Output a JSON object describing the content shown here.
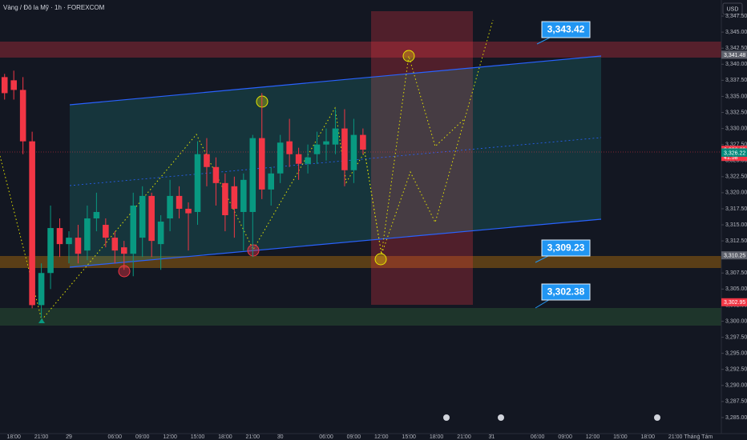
{
  "chart_data": {
    "type": "candlestick",
    "title": "Vàng / Đô la Mỹ · 1h · FOREXCOM",
    "currency": "USD",
    "up_color": "#089981",
    "down_color": "#f23645",
    "x": [
      -1,
      0,
      1,
      2,
      3,
      4,
      5,
      6,
      7,
      8,
      9,
      10,
      11,
      12,
      13,
      14,
      15,
      16,
      17,
      18,
      19,
      20,
      21,
      22,
      23,
      24,
      25,
      26,
      27,
      28,
      29,
      30,
      31,
      32,
      33,
      34,
      35,
      36,
      37,
      38
    ],
    "open": [
      3338,
      3337.5,
      3336,
      3328,
      3302.5,
      3307.5,
      3314.5,
      3312,
      3313,
      3311,
      3316,
      3315,
      3313,
      3311.5,
      3310.5,
      3313,
      3319.5,
      3312,
      3316,
      3319.5,
      3317.5,
      3317,
      3326,
      3324,
      3321.5,
      3321,
      3317,
      3317,
      3328.5,
      3320.5,
      3323,
      3328,
      3326,
      3324.5,
      3326,
      3327.5,
      3327.5,
      3330,
      3323.5,
      3329
    ],
    "high": [
      3338.5,
      3339,
      3338,
      3329.5,
      3309,
      3318,
      3316,
      3314,
      3315,
      3318,
      3320,
      3316,
      3314,
      3312.5,
      3320,
      3321,
      3320,
      3316.5,
      3322,
      3321,
      3318.5,
      3328,
      3328.5,
      3325.5,
      3323,
      3322.5,
      3323,
      3329,
      3335.5,
      3324,
      3329,
      3331.5,
      3327,
      3327.5,
      3329.5,
      3330,
      3333,
      3333,
      3331.5,
      3330
    ],
    "low": [
      3334.5,
      3334.5,
      3326,
      3302,
      3300.5,
      3305,
      3310,
      3309,
      3309,
      3309.5,
      3314,
      3311.5,
      3309,
      3308,
      3307,
      3310,
      3310,
      3308,
      3314,
      3316,
      3311,
      3315,
      3321,
      3318,
      3314,
      3313,
      3311,
      3310,
      3319,
      3318,
      3321.5,
      3324,
      3322,
      3323,
      3324.5,
      3325,
      3326,
      3321,
      3321.5,
      3326
    ],
    "close": [
      3335.5,
      3336,
      3328,
      3302.5,
      3307.5,
      3314.5,
      3312,
      3313,
      3310.5,
      3316,
      3317,
      3313,
      3311,
      3310.5,
      3318,
      3319.5,
      3312.5,
      3315.5,
      3319.5,
      3317.5,
      3316.8,
      3326,
      3324,
      3321.5,
      3316.5,
      3317.5,
      3322,
      3328.5,
      3320.5,
      3323,
      3327.8,
      3326,
      3324.5,
      3325.5,
      3327.5,
      3328,
      3330,
      3323.5,
      3329,
      3326.7
    ],
    "xlim": [
      -1.5,
      77
    ],
    "xticks": [
      {
        "value": 0,
        "label": "18:00"
      },
      {
        "value": 3,
        "label": "21:00"
      },
      {
        "value": 6,
        "label": "29"
      },
      {
        "value": 11,
        "label": "06:00"
      },
      {
        "value": 14,
        "label": "09:00"
      },
      {
        "value": 17,
        "label": "12:00"
      },
      {
        "value": 20,
        "label": "15:00"
      },
      {
        "value": 23,
        "label": "18:00"
      },
      {
        "value": 26,
        "label": "21:00"
      },
      {
        "value": 29,
        "label": "30"
      },
      {
        "value": 34,
        "label": "06:00"
      },
      {
        "value": 37,
        "label": "09:00"
      },
      {
        "value": 40,
        "label": "12:00"
      },
      {
        "value": 43,
        "label": "15:00"
      },
      {
        "value": 46,
        "label": "18:00"
      },
      {
        "value": 49,
        "label": "21:00"
      },
      {
        "value": 52,
        "label": "31"
      },
      {
        "value": 57,
        "label": "06:00"
      },
      {
        "value": 60,
        "label": "09:00"
      },
      {
        "value": 63,
        "label": "12:00"
      },
      {
        "value": 66,
        "label": "15:00"
      },
      {
        "value": 69,
        "label": "18:00"
      },
      {
        "value": 72,
        "label": "21:00"
      },
      {
        "value": 74.5,
        "label": "Tháng Tám"
      }
    ],
    "ylim": [
      3282.5,
      3350
    ],
    "yticks": [
      {
        "value": 3285,
        "label": "3,285.00"
      },
      {
        "value": 3287.5,
        "label": "3,287.50"
      },
      {
        "value": 3290,
        "label": "3,290.00"
      },
      {
        "value": 3292.5,
        "label": "3,292.50"
      },
      {
        "value": 3295,
        "label": "3,295.00"
      },
      {
        "value": 3297.5,
        "label": "3,297.50"
      },
      {
        "value": 3300,
        "label": "3,300.00"
      },
      {
        "value": 3302.5,
        "label": "3,302.50"
      },
      {
        "value": 3305,
        "label": "3,305.00"
      },
      {
        "value": 3307.5,
        "label": "3,307.50"
      },
      {
        "value": 3310,
        "label": "3,310.00"
      },
      {
        "value": 3312.5,
        "label": "3,312.50"
      },
      {
        "value": 3315,
        "label": "3,315.00"
      },
      {
        "value": 3317.5,
        "label": "3,317.50"
      },
      {
        "value": 3320,
        "label": "3,320.00"
      },
      {
        "value": 3322.5,
        "label": "3,322.50"
      },
      {
        "value": 3325,
        "label": "3,325.00"
      },
      {
        "value": 3327.5,
        "label": "3,327.50"
      },
      {
        "value": 3330,
        "label": "3,330.00"
      },
      {
        "value": 3332.5,
        "label": "3,332.50"
      },
      {
        "value": 3335,
        "label": "3,335.00"
      },
      {
        "value": 3337.5,
        "label": "3,337.50"
      },
      {
        "value": 3340,
        "label": "3,340.00"
      },
      {
        "value": 3342.5,
        "label": "3,342.50"
      },
      {
        "value": 3345,
        "label": "3,345.00"
      },
      {
        "value": 3347.5,
        "label": "3,347.50"
      }
    ],
    "price_labels": [
      {
        "value": 3341.48,
        "label": "3,341.48",
        "color": "#5d606b"
      },
      {
        "value": 3326.69,
        "label": "3,326.69",
        "color": "#f23645"
      },
      {
        "value": 3326.28,
        "label": "3,326.28",
        "color": "#089981"
      },
      {
        "value": 3326.22,
        "label": "3,326.22",
        "color": "#00897b"
      },
      {
        "value": 3310.25,
        "label": "3,310.25",
        "color": "#5d606b"
      },
      {
        "value": 3302.95,
        "label": "3,302.95",
        "color": "#f23645"
      }
    ],
    "countdown": "41:58",
    "annotations": [
      "3,343.42",
      "3,309.23",
      "3,302.38"
    ]
  }
}
